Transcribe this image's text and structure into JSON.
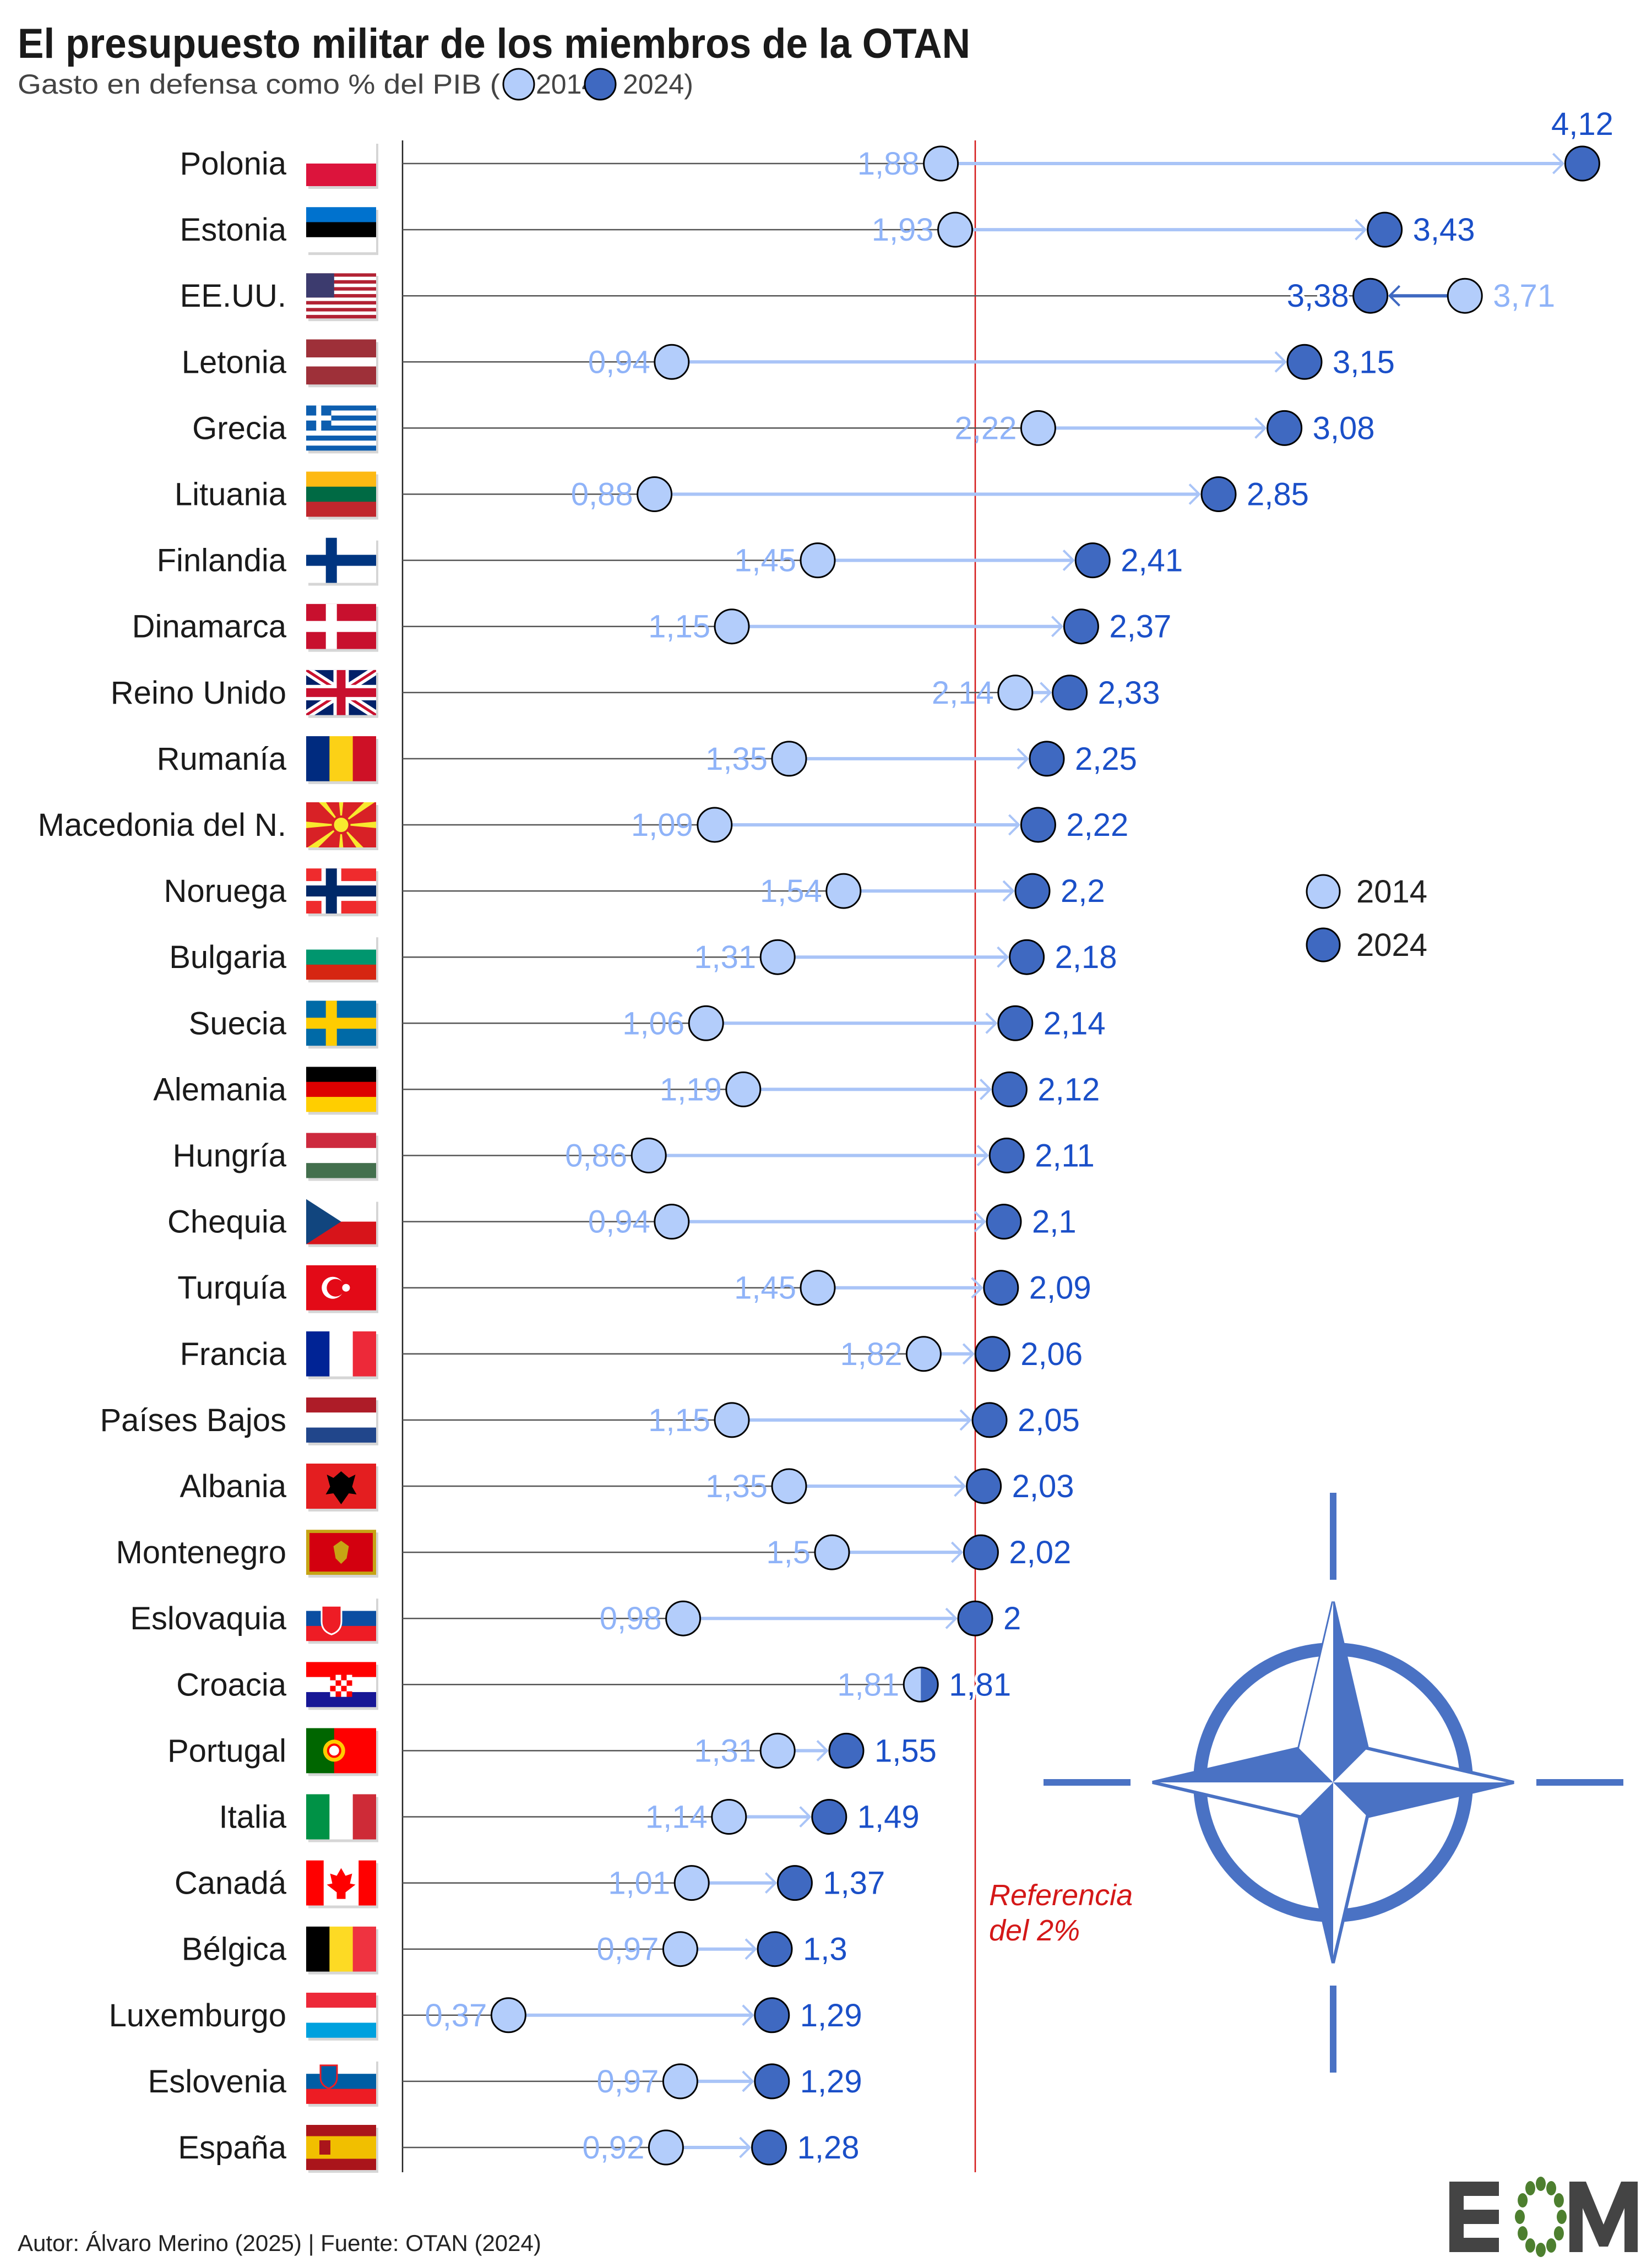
{
  "title": "El presupuesto militar de los miembros de la OTAN",
  "subtitle": {
    "prefix": "Gasto en defensa como % del PIB (",
    "year_a": "2014",
    "year_b": "2024)"
  },
  "legend": {
    "a": "2014",
    "b": "2024"
  },
  "reference_label": [
    "Referencia",
    "del 2%"
  ],
  "footer": "Autor: Álvaro Merino (2025) | Fuente: OTAN (2024)",
  "logo_text": "EOM",
  "colors": {
    "y2014": "#b3cdfb",
    "y2024": "#3f69c1",
    "label2014": "#8fb3f8",
    "label2024": "#1a4fc8",
    "reference": "#d41818",
    "nato": "#4a72c4"
  },
  "chart_data": {
    "type": "dumbbell",
    "title": "El presupuesto militar de los miembros de la OTAN",
    "subtitle": "Gasto en defensa como % del PIB",
    "series": [
      {
        "name": "2014"
      },
      {
        "name": "2024"
      }
    ],
    "reference_line": {
      "value": 2,
      "label": "Referencia del 2%"
    },
    "xlim": [
      0,
      4.2
    ],
    "rows": [
      {
        "country": "Polonia",
        "flag": "pl",
        "v2014": 1.88,
        "v2024": 4.12,
        "l2014": "1,88",
        "l2024": "4,12"
      },
      {
        "country": "Estonia",
        "flag": "ee",
        "v2014": 1.93,
        "v2024": 3.43,
        "l2014": "1,93",
        "l2024": "3,43"
      },
      {
        "country": "EE.UU.",
        "flag": "us",
        "v2014": 3.71,
        "v2024": 3.38,
        "l2014": "3,71",
        "l2024": "3,38"
      },
      {
        "country": "Letonia",
        "flag": "lv",
        "v2014": 0.94,
        "v2024": 3.15,
        "l2014": "0,94",
        "l2024": "3,15"
      },
      {
        "country": "Grecia",
        "flag": "gr",
        "v2014": 2.22,
        "v2024": 3.08,
        "l2014": "2,22",
        "l2024": "3,08"
      },
      {
        "country": "Lituania",
        "flag": "lt",
        "v2014": 0.88,
        "v2024": 2.85,
        "l2014": "0,88",
        "l2024": "2,85"
      },
      {
        "country": "Finlandia",
        "flag": "fi",
        "v2014": 1.45,
        "v2024": 2.41,
        "l2014": "1,45",
        "l2024": "2,41"
      },
      {
        "country": "Dinamarca",
        "flag": "dk",
        "v2014": 1.15,
        "v2024": 2.37,
        "l2014": "1,15",
        "l2024": "2,37"
      },
      {
        "country": "Reino Unido",
        "flag": "gb",
        "v2014": 2.14,
        "v2024": 2.33,
        "l2014": "2,14",
        "l2024": "2,33"
      },
      {
        "country": "Rumanía",
        "flag": "ro",
        "v2014": 1.35,
        "v2024": 2.25,
        "l2014": "1,35",
        "l2024": "2,25"
      },
      {
        "country": "Macedonia del N.",
        "flag": "mk",
        "v2014": 1.09,
        "v2024": 2.22,
        "l2014": "1,09",
        "l2024": "2,22"
      },
      {
        "country": "Noruega",
        "flag": "no",
        "v2014": 1.54,
        "v2024": 2.2,
        "l2014": "1,54",
        "l2024": "2,2"
      },
      {
        "country": "Bulgaria",
        "flag": "bg",
        "v2014": 1.31,
        "v2024": 2.18,
        "l2014": "1,31",
        "l2024": "2,18"
      },
      {
        "country": "Suecia",
        "flag": "se",
        "v2014": 1.06,
        "v2024": 2.14,
        "l2014": "1,06",
        "l2024": "2,14"
      },
      {
        "country": "Alemania",
        "flag": "de",
        "v2014": 1.19,
        "v2024": 2.12,
        "l2014": "1,19",
        "l2024": "2,12"
      },
      {
        "country": "Hungría",
        "flag": "hu",
        "v2014": 0.86,
        "v2024": 2.11,
        "l2014": "0,86",
        "l2024": "2,11"
      },
      {
        "country": "Chequia",
        "flag": "cz",
        "v2014": 0.94,
        "v2024": 2.1,
        "l2014": "0,94",
        "l2024": "2,1"
      },
      {
        "country": "Turquía",
        "flag": "tr",
        "v2014": 1.45,
        "v2024": 2.09,
        "l2014": "1,45",
        "l2024": "2,09"
      },
      {
        "country": "Francia",
        "flag": "fr",
        "v2014": 1.82,
        "v2024": 2.06,
        "l2014": "1,82",
        "l2024": "2,06"
      },
      {
        "country": "Países Bajos",
        "flag": "nl",
        "v2014": 1.15,
        "v2024": 2.05,
        "l2014": "1,15",
        "l2024": "2,05"
      },
      {
        "country": "Albania",
        "flag": "al",
        "v2014": 1.35,
        "v2024": 2.03,
        "l2014": "1,35",
        "l2024": "2,03"
      },
      {
        "country": "Montenegro",
        "flag": "me",
        "v2014": 1.5,
        "v2024": 2.02,
        "l2014": "1,5",
        "l2024": "2,02"
      },
      {
        "country": "Eslovaquia",
        "flag": "sk",
        "v2014": 0.98,
        "v2024": 2,
        "l2014": "0,98",
        "l2024": "2"
      },
      {
        "country": "Croacia",
        "flag": "hr",
        "v2014": 1.81,
        "v2024": 1.81,
        "l2014": "1,81",
        "l2024": "1,81"
      },
      {
        "country": "Portugal",
        "flag": "pt",
        "v2014": 1.31,
        "v2024": 1.55,
        "l2014": "1,31",
        "l2024": "1,55"
      },
      {
        "country": "Italia",
        "flag": "it",
        "v2014": 1.14,
        "v2024": 1.49,
        "l2014": "1,14",
        "l2024": "1,49"
      },
      {
        "country": "Canadá",
        "flag": "ca",
        "v2014": 1.01,
        "v2024": 1.37,
        "l2014": "1,01",
        "l2024": "1,37"
      },
      {
        "country": "Bélgica",
        "flag": "be",
        "v2014": 0.97,
        "v2024": 1.3,
        "l2014": "0,97",
        "l2024": "1,3"
      },
      {
        "country": "Luxemburgo",
        "flag": "lu",
        "v2014": 0.37,
        "v2024": 1.29,
        "l2014": "0,37",
        "l2024": "1,29"
      },
      {
        "country": "Eslovenia",
        "flag": "si",
        "v2014": 0.97,
        "v2024": 1.29,
        "l2014": "0,97",
        "l2024": "1,29"
      },
      {
        "country": "España",
        "flag": "es",
        "v2014": 0.92,
        "v2024": 1.28,
        "l2014": "0,92",
        "l2024": "1,28"
      }
    ]
  }
}
